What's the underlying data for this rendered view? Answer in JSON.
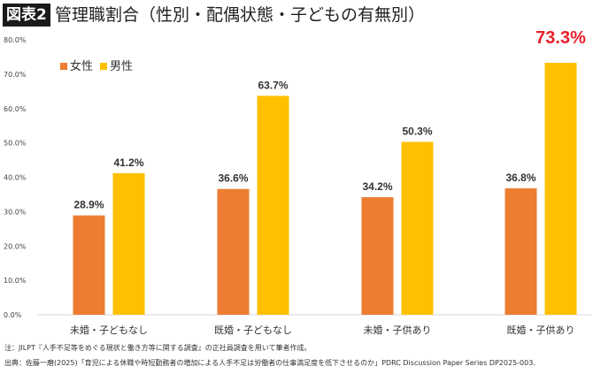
{
  "header": {
    "badge": "図表2",
    "title": "管理職割合（性別・配偶状態・子どもの有無別）"
  },
  "chart_data": {
    "type": "bar",
    "categories": [
      "未婚・子どもなし",
      "既婚・子どもなし",
      "未婚・子供あり",
      "既婚・子供あり"
    ],
    "series": [
      {
        "name": "女性",
        "values": [
          28.9,
          36.6,
          34.2,
          36.8
        ],
        "color": "#ED7D31"
      },
      {
        "name": "男性",
        "values": [
          41.2,
          63.7,
          50.3,
          73.3
        ],
        "color": "#FFC000"
      }
    ],
    "data_labels": [
      [
        "28.9%",
        "36.6%",
        "34.2%",
        "36.8%"
      ],
      [
        "41.2%",
        "63.7%",
        "50.3%",
        "73.3%"
      ]
    ],
    "highlight_color": "#E8202A",
    "yticks": [
      "0.0%",
      "10.0%",
      "20.0%",
      "30.0%",
      "40.0%",
      "50.0%",
      "60.0%",
      "70.0%",
      "80.0%"
    ],
    "ylim": [
      0,
      80
    ],
    "grid": false,
    "legend": "top-left"
  },
  "notes": {
    "note": "注：JILPT『人手不足等をめぐる現状と働き方等に関する調査』の正社員調査を用いて筆者作成。",
    "source": "出典：佐藤一磨(2025)「育児による休職や時短勤務者の増加による人手不足は労働者の仕事満足度を低下させるのか」PDRC Discussion Paper Series DP2025-003."
  }
}
